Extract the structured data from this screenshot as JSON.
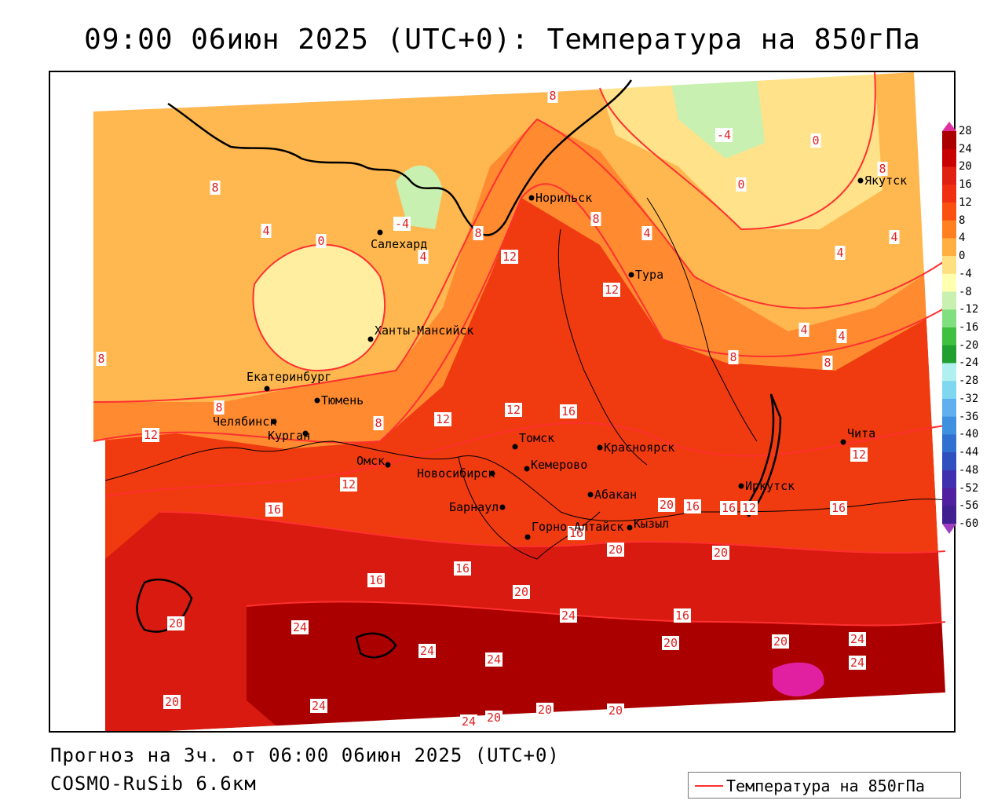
{
  "header": {
    "title": "09:00 06июн 2025 (UTC+0): Температура на 850гПа"
  },
  "footer": {
    "forecast": "Прогноз на 3ч. от 06:00 06июн 2025 (UTC+0)",
    "model": "COSMO-RuSib 6.6км"
  },
  "legend": {
    "label": "Температура на 850гПа",
    "line_color": "#ff3030"
  },
  "colorbar": {
    "ticks": [
      "28",
      "24",
      "20",
      "16",
      "12",
      "8",
      "4",
      "0",
      "-4",
      "-8",
      "-12",
      "-16",
      "-20",
      "-24",
      "-28",
      "-32",
      "-36",
      "-40",
      "-44",
      "-48",
      "-52",
      "-56",
      "-60"
    ],
    "colors": [
      "#aa0000",
      "#c80000",
      "#e02010",
      "#f03010",
      "#fa5010",
      "#ff8020",
      "#ffb040",
      "#ffe080",
      "#ffffb0",
      "#c8f0b0",
      "#80e080",
      "#40c040",
      "#20a030",
      "#b0f0f0",
      "#80d8f0",
      "#60b0f0",
      "#4090e0",
      "#3070d0",
      "#3050c0",
      "#4030b0",
      "#5020a0",
      "#402090"
    ]
  },
  "cities": [
    {
      "name": "Норильск"
    },
    {
      "name": "Якутск"
    },
    {
      "name": "Салехард"
    },
    {
      "name": "Тура"
    },
    {
      "name": "Ханты-Мансийск"
    },
    {
      "name": "Екатеринбург"
    },
    {
      "name": "Тюмень"
    },
    {
      "name": "Челябинск"
    },
    {
      "name": "Курган"
    },
    {
      "name": "Омск"
    },
    {
      "name": "Томск"
    },
    {
      "name": "Красноярск"
    },
    {
      "name": "Новосибирск"
    },
    {
      "name": "Кемерово"
    },
    {
      "name": "Чита"
    },
    {
      "name": "Иркутск"
    },
    {
      "name": "Абакан"
    },
    {
      "name": "Барнаул"
    },
    {
      "name": "Кызыл"
    },
    {
      "name": "Горно-Алтайск"
    }
  ],
  "contour_labels": [
    {
      "v": "8"
    },
    {
      "v": "-4"
    },
    {
      "v": "0"
    },
    {
      "v": "8"
    },
    {
      "v": "8"
    },
    {
      "v": "4"
    },
    {
      "v": "-4"
    },
    {
      "v": "0"
    },
    {
      "v": "8"
    },
    {
      "v": "4"
    },
    {
      "v": "0"
    },
    {
      "v": "4"
    },
    {
      "v": "12"
    },
    {
      "v": "8"
    },
    {
      "v": "4"
    },
    {
      "v": "4"
    },
    {
      "v": "12"
    },
    {
      "v": "8"
    },
    {
      "v": "4"
    },
    {
      "v": "4"
    },
    {
      "v": "8"
    },
    {
      "v": "8"
    },
    {
      "v": "8"
    },
    {
      "v": "12"
    },
    {
      "v": "12"
    },
    {
      "v": "16"
    },
    {
      "v": "12"
    },
    {
      "v": "12"
    },
    {
      "v": "12"
    },
    {
      "v": "8"
    },
    {
      "v": "16"
    },
    {
      "v": "20"
    },
    {
      "v": "16"
    },
    {
      "v": "16"
    },
    {
      "v": "12"
    },
    {
      "v": "16"
    },
    {
      "v": "20"
    },
    {
      "v": "20"
    },
    {
      "v": "16"
    },
    {
      "v": "16"
    },
    {
      "v": "20"
    },
    {
      "v": "20"
    },
    {
      "v": "24"
    },
    {
      "v": "24"
    },
    {
      "v": "24"
    },
    {
      "v": "20"
    },
    {
      "v": "16"
    },
    {
      "v": "24"
    },
    {
      "v": "20"
    },
    {
      "v": "24"
    },
    {
      "v": "20"
    },
    {
      "v": "24"
    },
    {
      "v": "20"
    },
    {
      "v": "16"
    },
    {
      "v": "24"
    },
    {
      "v": "24"
    },
    {
      "v": "20"
    },
    {
      "v": "20"
    },
    {
      "v": "24"
    }
  ]
}
